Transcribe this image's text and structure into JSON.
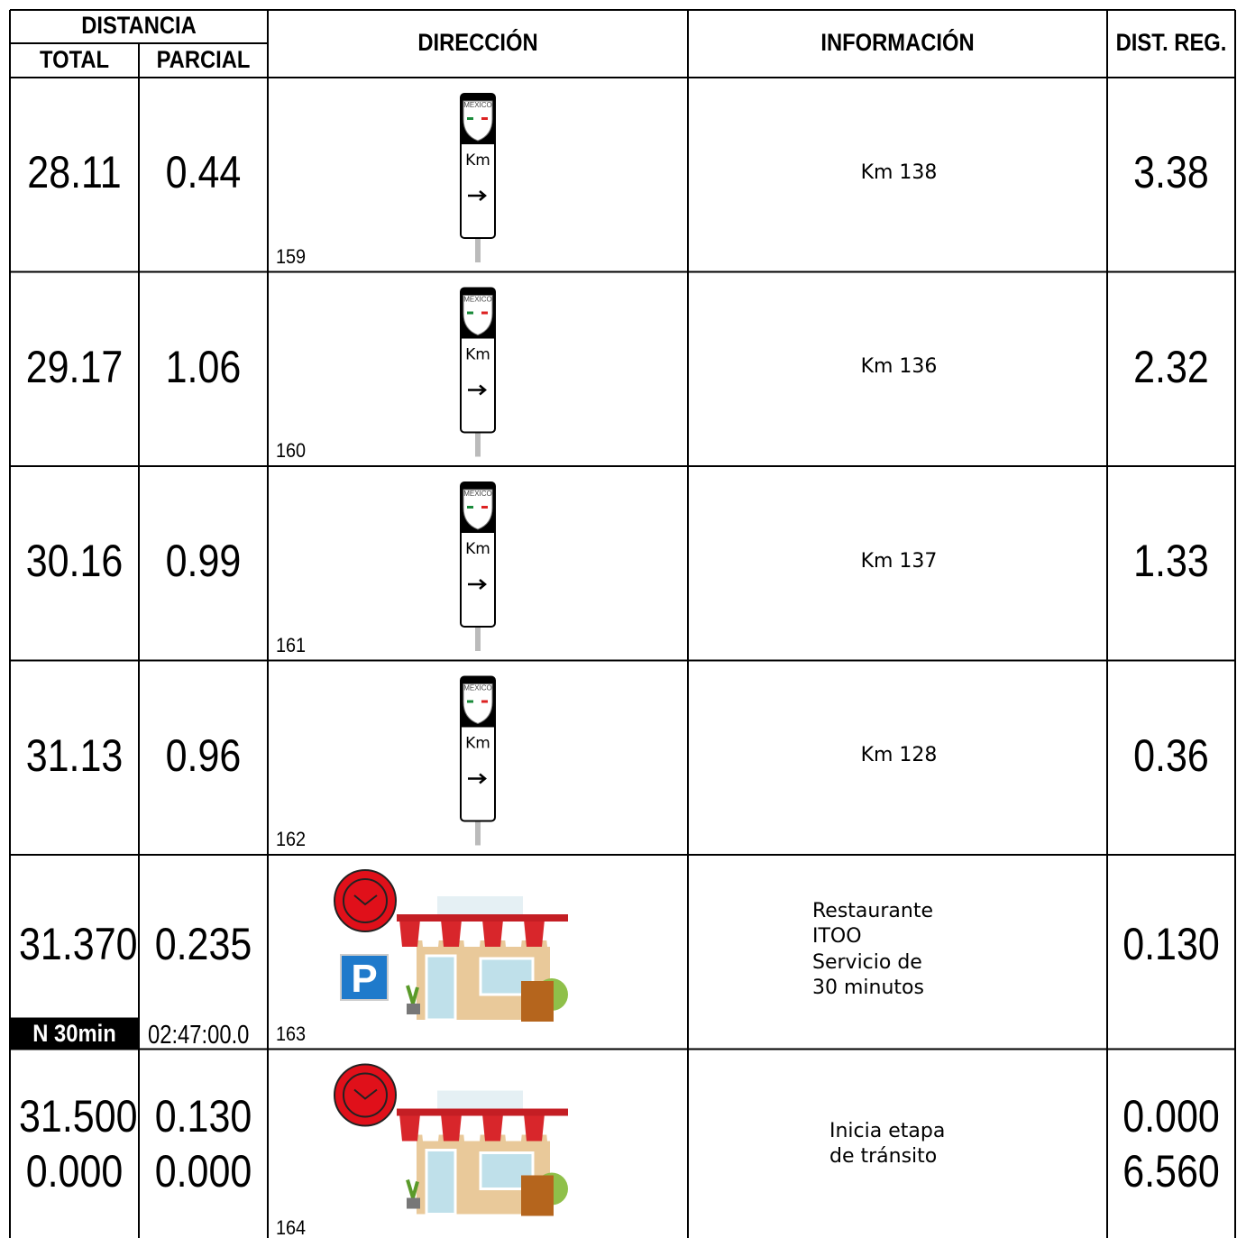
{
  "header": {
    "distancia": "DISTANCIA",
    "total": "TOTAL",
    "parcial": "PARCIAL",
    "direccion": "DIRECCIÓN",
    "informacion": "INFORMACIÓN",
    "dist_reg": "DIST. REG."
  },
  "rows": [
    {
      "total": [
        "28.11"
      ],
      "parcial": [
        "0.44"
      ],
      "number": "159",
      "sign": {
        "shield": "MEXICO",
        "label": "Km"
      },
      "info": [
        "Km 138"
      ],
      "dist_reg": [
        "3.38"
      ]
    },
    {
      "total": [
        "29.17"
      ],
      "parcial": [
        "1.06"
      ],
      "number": "160",
      "sign": {
        "shield": "MEXICO",
        "label": "Km"
      },
      "info": [
        "Km 136"
      ],
      "dist_reg": [
        "2.32"
      ]
    },
    {
      "total": [
        "30.16"
      ],
      "parcial": [
        "0.99"
      ],
      "number": "161",
      "sign": {
        "shield": "MEXICO",
        "label": "Km"
      },
      "info": [
        "Km 137"
      ],
      "dist_reg": [
        "1.33"
      ]
    },
    {
      "total": [
        "31.13"
      ],
      "parcial": [
        "0.96"
      ],
      "number": "162",
      "sign": {
        "shield": "MEXICO",
        "label": "Km"
      },
      "info": [
        "Km 128"
      ],
      "dist_reg": [
        "0.36"
      ]
    },
    {
      "total": [
        "31.370"
      ],
      "parcial": [
        "0.235"
      ],
      "note": "N 30min",
      "time": "02:47:00.0",
      "number": "163",
      "parking": "P",
      "info": [
        "Restaurante",
        "ITOO",
        "Servicio de",
        "30 minutos"
      ],
      "dist_reg": [
        "0.130"
      ]
    },
    {
      "total": [
        "31.500",
        "0.000"
      ],
      "parcial": [
        "0.130",
        "0.000"
      ],
      "number": "164",
      "info": [
        "Inicia etapa",
        "de tránsito"
      ],
      "dist_reg": [
        "0.000",
        "6.560"
      ]
    }
  ]
}
